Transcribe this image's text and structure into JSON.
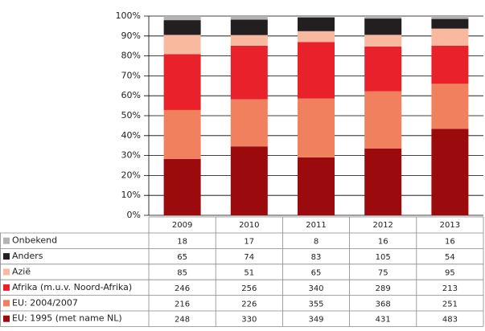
{
  "chart_data": {
    "type": "stacked_percent_bar",
    "categories": [
      "2009",
      "2010",
      "2011",
      "2012",
      "2013"
    ],
    "series": [
      {
        "name": "Onbekend",
        "color": "#b3b3b3",
        "values": [
          18,
          17,
          8,
          16,
          16
        ]
      },
      {
        "name": "Anders",
        "color": "#231f20",
        "values": [
          65,
          74,
          83,
          105,
          54
        ]
      },
      {
        "name": "Azië",
        "color": "#f9b8a0",
        "values": [
          85,
          51,
          65,
          75,
          95
        ]
      },
      {
        "name": "Afrika (m.u.v. Noord-Afrika)",
        "color": "#e8212b",
        "values": [
          246,
          256,
          340,
          289,
          213
        ]
      },
      {
        "name": "EU: 2004/2007",
        "color": "#f0805e",
        "values": [
          216,
          226,
          355,
          368,
          251
        ]
      },
      {
        "name": "EU: 1995 (met name NL)",
        "color": "#9b0b0e",
        "values": [
          248,
          330,
          349,
          431,
          483
        ]
      }
    ],
    "ylim": [
      0,
      100
    ],
    "yticks": [
      {
        "value": 0,
        "label": "0%"
      },
      {
        "value": 10,
        "label": "10%"
      },
      {
        "value": 20,
        "label": "20%"
      },
      {
        "value": 30,
        "label": "30%"
      },
      {
        "value": 40,
        "label": "40%"
      },
      {
        "value": 50,
        "label": "50%"
      },
      {
        "value": 60,
        "label": "60%"
      },
      {
        "value": 70,
        "label": "70%"
      },
      {
        "value": 80,
        "label": "80%"
      },
      {
        "value": 90,
        "label": "90%"
      },
      {
        "value": 100,
        "label": "100%"
      }
    ],
    "grid": true
  }
}
